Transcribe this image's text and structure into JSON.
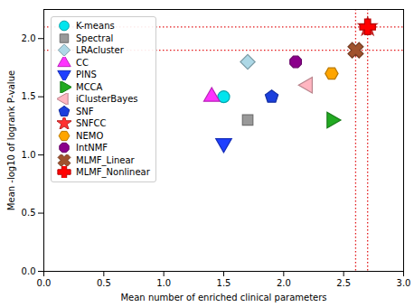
{
  "chart_data": {
    "type": "scatter",
    "x_label": "Mean number of enriched clinical parameters",
    "y_label": "Mean -log10 of logrank P-value",
    "xlim": [
      0,
      3
    ],
    "ylim": [
      0,
      2.25
    ],
    "xticks": [
      {
        "value": 0,
        "label": "0.0"
      },
      {
        "value": 0.5,
        "label": "0.5"
      },
      {
        "value": 1,
        "label": "1.0"
      },
      {
        "value": 1.5,
        "label": "1.5"
      },
      {
        "value": 2,
        "label": "2.0"
      },
      {
        "value": 2.5,
        "label": "2.5"
      },
      {
        "value": 3,
        "label": "3.0"
      }
    ],
    "yticks": [
      {
        "value": 0,
        "label": "0.0"
      },
      {
        "value": 0.5,
        "label": "0.5"
      },
      {
        "value": 1,
        "label": "1.0"
      },
      {
        "value": 1.5,
        "label": "1.5"
      },
      {
        "value": 2,
        "label": "2.0"
      }
    ],
    "grid": false,
    "legend": "top-left",
    "series": [
      {
        "name": "K-means",
        "color": "#00e5ee",
        "marker": "circle",
        "x": [
          1.5
        ],
        "values": [
          1.5
        ]
      },
      {
        "name": "Spectral",
        "color": "#999999",
        "marker": "square",
        "x": [
          1.7
        ],
        "values": [
          1.3
        ]
      },
      {
        "name": "LRAcluster",
        "color": "#add8e6",
        "marker": "diamond",
        "x": [
          1.7
        ],
        "values": [
          1.8
        ]
      },
      {
        "name": "CC",
        "color": "#ff33ff",
        "marker": "triangle-up",
        "x": [
          1.4
        ],
        "values": [
          1.5
        ]
      },
      {
        "name": "PINS",
        "color": "#1f3fff",
        "marker": "triangle-down",
        "x": [
          1.5
        ],
        "values": [
          1.1
        ]
      },
      {
        "name": "MCCA",
        "color": "#22aa22",
        "marker": "triangle-right",
        "x": [
          2.4
        ],
        "values": [
          1.3
        ]
      },
      {
        "name": "iClusterBayes",
        "color": "#ffb6c1",
        "marker": "triangle-left",
        "x": [
          2.2
        ],
        "values": [
          1.6
        ]
      },
      {
        "name": "SNF",
        "color": "#1a3fdd",
        "marker": "pentagon",
        "x": [
          1.9
        ],
        "values": [
          1.5
        ]
      },
      {
        "name": "SNFCC",
        "color": "#ff3030",
        "marker": "star",
        "x": [
          2.7
        ],
        "values": [
          2.1
        ]
      },
      {
        "name": "NEMO",
        "color": "#ffa500",
        "marker": "hexagon",
        "x": [
          2.4
        ],
        "values": [
          1.7
        ]
      },
      {
        "name": "IntNMF",
        "color": "#8b008b",
        "marker": "octagon",
        "x": [
          2.1
        ],
        "values": [
          1.8
        ]
      },
      {
        "name": "MLMF_Linear",
        "color": "#a0522d",
        "marker": "x",
        "x": [
          2.6
        ],
        "values": [
          1.9
        ]
      },
      {
        "name": "MLMF_Nonlinear",
        "color": "#ff0000",
        "marker": "plus",
        "x": [
          2.7
        ],
        "values": [
          2.1
        ]
      }
    ],
    "reference_lines": [
      {
        "axis": "y",
        "value": 2.1,
        "color": "#e31a1c",
        "line_style": "dotted"
      },
      {
        "axis": "y",
        "value": 1.9,
        "color": "#e31a1c",
        "line_style": "dotted"
      },
      {
        "axis": "x",
        "value": 2.6,
        "color": "#e31a1c",
        "line_style": "dotted"
      },
      {
        "axis": "x",
        "value": 2.7,
        "color": "#e31a1c",
        "line_style": "dotted"
      }
    ]
  }
}
